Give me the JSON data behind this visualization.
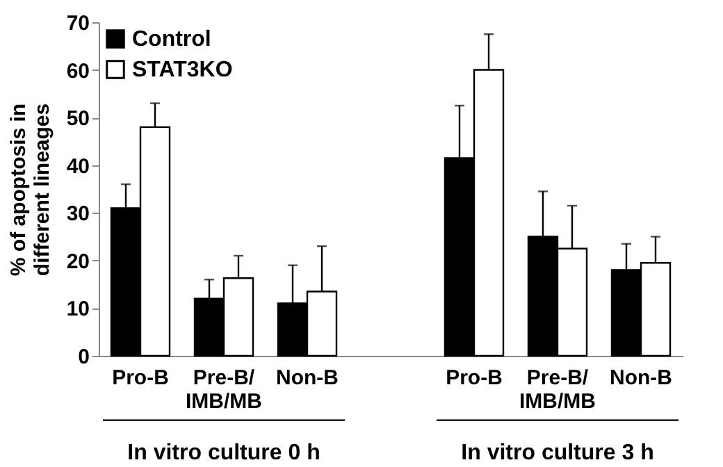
{
  "chart_data": {
    "type": "bar",
    "ylabel": "% of apoptosis in different lineages",
    "categories": [
      "Pro-B",
      "Pre-B/ IMB/MB",
      "Non-B",
      null,
      "Pro-B",
      "Pre-B/ IMB/MB",
      "Non-B"
    ],
    "series": [
      {
        "name": "Control",
        "color": "#000000",
        "values": [
          31,
          12,
          11,
          null,
          41.5,
          25,
          18
        ],
        "errors": [
          [
            31,
            36
          ],
          [
            12,
            16
          ],
          [
            11,
            19
          ],
          null,
          [
            41.5,
            52.5
          ],
          [
            25,
            34.5
          ],
          [
            18,
            23.5
          ]
        ]
      },
      {
        "name": "STAT3KO",
        "color": "#ffffff",
        "values": [
          48,
          16.3,
          13.5,
          null,
          60,
          22.5,
          19.5
        ],
        "errors": [
          [
            48,
            53
          ],
          [
            16.3,
            21
          ],
          [
            13.5,
            23
          ],
          null,
          [
            60,
            67.5
          ],
          [
            22.5,
            31.5
          ],
          [
            19.5,
            25
          ]
        ]
      }
    ],
    "ylim": [
      0,
      70
    ],
    "yticks": [
      0,
      10,
      20,
      30,
      40,
      50,
      60,
      70
    ],
    "annotations": [
      "In vitro culture 0 h",
      "In vitro culture 3 h"
    ],
    "grid": false,
    "legend": "top left"
  }
}
